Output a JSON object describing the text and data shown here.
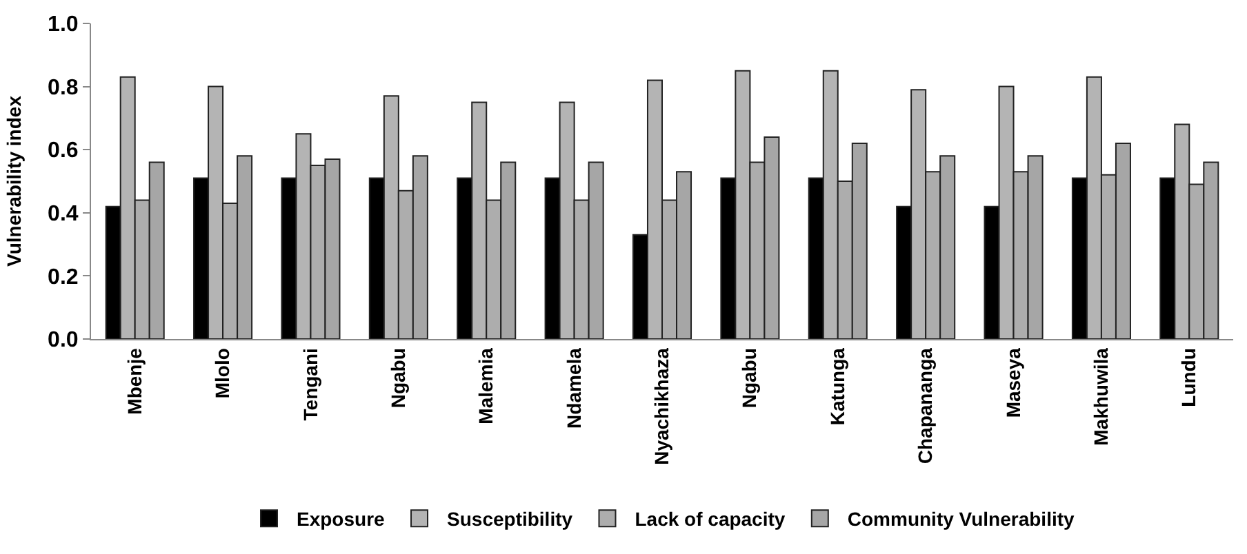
{
  "chart_data": {
    "type": "bar",
    "ylabel": "Vulnerability index",
    "categories": [
      "Mbenje",
      "Mlolo",
      "Tengani",
      "Ngabu",
      "Malemia",
      "Ndamela",
      "Nyachikhaza",
      "Ngabu",
      "Katunga",
      "Chapananga",
      "Maseya",
      "Makhuwila",
      "Lundu"
    ],
    "series": [
      {
        "name": "Exposure",
        "color": "#000000",
        "values": [
          0.42,
          0.51,
          0.51,
          0.51,
          0.51,
          0.51,
          0.33,
          0.51,
          0.51,
          0.42,
          0.42,
          0.51,
          0.51
        ]
      },
      {
        "name": "Susceptibility",
        "color": "#b4b4b4",
        "values": [
          0.83,
          0.8,
          0.65,
          0.77,
          0.75,
          0.75,
          0.82,
          0.85,
          0.85,
          0.79,
          0.8,
          0.83,
          0.68
        ]
      },
      {
        "name": "Lack of capacity",
        "color": "#adadad",
        "values": [
          0.44,
          0.43,
          0.55,
          0.47,
          0.44,
          0.44,
          0.44,
          0.56,
          0.5,
          0.53,
          0.53,
          0.52,
          0.49
        ]
      },
      {
        "name": "Community Vulnerability",
        "color": "#a6a6a6",
        "values": [
          0.56,
          0.58,
          0.57,
          0.58,
          0.56,
          0.56,
          0.53,
          0.64,
          0.62,
          0.58,
          0.58,
          0.62,
          0.56
        ]
      }
    ],
    "ylim": [
      0,
      1.0
    ],
    "yticks": [
      {
        "value": 0,
        "label": "0.0"
      },
      {
        "value": 0.2,
        "label": "0.2"
      },
      {
        "value": 0.4,
        "label": "0.4"
      },
      {
        "value": 0.6,
        "label": "0.6"
      },
      {
        "value": 0.8,
        "label": "0.8"
      },
      {
        "value": 1.0,
        "label": "1.0"
      }
    ],
    "legend": "bottom"
  }
}
